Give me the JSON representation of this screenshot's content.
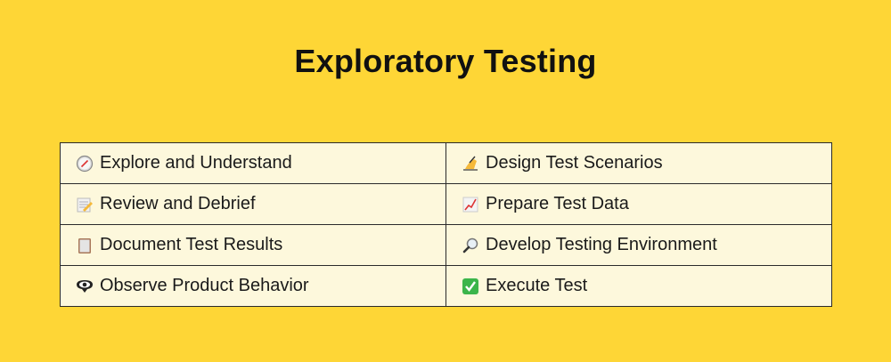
{
  "title": "Exploratory Testing",
  "rows": [
    [
      {
        "icon": "compass-icon",
        "label": "Explore and Understand"
      },
      {
        "icon": "writing-hand-icon",
        "label": "Design Test Scenarios"
      }
    ],
    [
      {
        "icon": "memo-icon",
        "label": "Review and Debrief"
      },
      {
        "icon": "chart-increasing-icon",
        "label": "Prepare Test Data"
      }
    ],
    [
      {
        "icon": "clipboard-icon",
        "label": "Document Test Results"
      },
      {
        "icon": "magnifying-glass-icon",
        "label": "Develop Testing Environment"
      }
    ],
    [
      {
        "icon": "eye-speech-bubble-icon",
        "label": "Observe Product Behavior"
      },
      {
        "icon": "check-mark-button-icon",
        "label": "Execute Test"
      }
    ]
  ]
}
